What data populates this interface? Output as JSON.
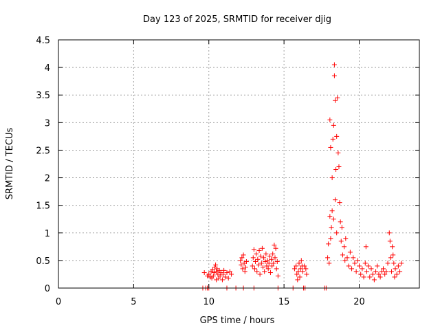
{
  "chart_data": {
    "type": "scatter",
    "title": "Day 123 of 2025, SRMTID for receiver djig",
    "xlabel": "GPS time / hours",
    "ylabel": "SRMTID / TECUs",
    "xlim": [
      0,
      24
    ],
    "ylim": [
      0,
      4.5
    ],
    "xticks": [
      0,
      5,
      10,
      15,
      20
    ],
    "xtick_labels": [
      "0",
      "5",
      "10",
      "15",
      "20"
    ],
    "yticks": [
      0,
      0.5,
      1,
      1.5,
      2,
      2.5,
      3,
      3.5,
      4,
      4.5
    ],
    "ytick_labels": [
      "0",
      "0.5",
      "1",
      "1.5",
      "2",
      "2.5",
      "3",
      "3.5",
      "4",
      "4.5"
    ],
    "grid": true,
    "marker": "+",
    "color": "#ff0000",
    "series": [
      {
        "name": "SRMTID",
        "points": [
          [
            9.6,
            0
          ],
          [
            9.8,
            0
          ],
          [
            9.9,
            0
          ],
          [
            10.0,
            0
          ],
          [
            11.2,
            0
          ],
          [
            11.8,
            0
          ],
          [
            12.3,
            0
          ],
          [
            13.0,
            0
          ],
          [
            14.6,
            0
          ],
          [
            15.6,
            0
          ],
          [
            16.3,
            0
          ],
          [
            16.4,
            0
          ],
          [
            17.7,
            0
          ],
          [
            17.8,
            0
          ],
          [
            9.7,
            0.28
          ],
          [
            9.9,
            0.22
          ],
          [
            10.0,
            0.25
          ],
          [
            10.1,
            0.2
          ],
          [
            10.15,
            0.3
          ],
          [
            10.2,
            0.18
          ],
          [
            10.25,
            0.33
          ],
          [
            10.3,
            0.22
          ],
          [
            10.35,
            0.28
          ],
          [
            10.4,
            0.38
          ],
          [
            10.45,
            0.42
          ],
          [
            10.5,
            0.3
          ],
          [
            10.5,
            0.15
          ],
          [
            10.55,
            0.35
          ],
          [
            10.6,
            0.25
          ],
          [
            10.65,
            0.18
          ],
          [
            10.7,
            0.32
          ],
          [
            10.75,
            0.22
          ],
          [
            10.8,
            0.28
          ],
          [
            10.9,
            0.15
          ],
          [
            10.95,
            0.25
          ],
          [
            11.0,
            0.32
          ],
          [
            11.1,
            0.2
          ],
          [
            11.2,
            0.28
          ],
          [
            11.3,
            0.18
          ],
          [
            11.4,
            0.3
          ],
          [
            11.5,
            0.25
          ],
          [
            12.1,
            0.5
          ],
          [
            12.15,
            0.42
          ],
          [
            12.2,
            0.55
          ],
          [
            12.25,
            0.35
          ],
          [
            12.3,
            0.6
          ],
          [
            12.35,
            0.45
          ],
          [
            12.4,
            0.3
          ],
          [
            12.45,
            0.38
          ],
          [
            12.5,
            0.48
          ],
          [
            12.9,
            0.4
          ],
          [
            12.95,
            0.55
          ],
          [
            13.0,
            0.7
          ],
          [
            13.05,
            0.35
          ],
          [
            13.1,
            0.48
          ],
          [
            13.15,
            0.62
          ],
          [
            13.2,
            0.3
          ],
          [
            13.25,
            0.52
          ],
          [
            13.3,
            0.42
          ],
          [
            13.35,
            0.68
          ],
          [
            13.4,
            0.25
          ],
          [
            13.45,
            0.58
          ],
          [
            13.5,
            0.45
          ],
          [
            13.55,
            0.72
          ],
          [
            13.6,
            0.38
          ],
          [
            13.65,
            0.55
          ],
          [
            13.7,
            0.3
          ],
          [
            13.75,
            0.48
          ],
          [
            13.8,
            0.62
          ],
          [
            13.85,
            0.4
          ],
          [
            13.9,
            0.5
          ],
          [
            13.95,
            0.35
          ],
          [
            14.0,
            0.45
          ],
          [
            14.05,
            0.58
          ],
          [
            14.1,
            0.28
          ],
          [
            14.15,
            0.52
          ],
          [
            14.2,
            0.4
          ],
          [
            14.25,
            0.62
          ],
          [
            14.3,
            0.45
          ],
          [
            14.35,
            0.78
          ],
          [
            14.4,
            0.55
          ],
          [
            14.45,
            0.72
          ],
          [
            14.5,
            0.35
          ],
          [
            14.55,
            0.48
          ],
          [
            14.6,
            0.22
          ],
          [
            15.7,
            0.35
          ],
          [
            15.8,
            0.4
          ],
          [
            15.85,
            0.25
          ],
          [
            15.9,
            0.15
          ],
          [
            15.95,
            0.3
          ],
          [
            16.0,
            0.45
          ],
          [
            16.05,
            0.2
          ],
          [
            16.1,
            0.35
          ],
          [
            16.15,
            0.5
          ],
          [
            16.2,
            0.4
          ],
          [
            16.25,
            0.3
          ],
          [
            16.35,
            0.4
          ],
          [
            16.45,
            0.35
          ],
          [
            16.5,
            0.25
          ],
          [
            17.9,
            0.55
          ],
          [
            17.95,
            0.8
          ],
          [
            18.0,
            0.45
          ],
          [
            18.05,
            1.3
          ],
          [
            18.05,
            3.05
          ],
          [
            18.1,
            0.9
          ],
          [
            18.1,
            2.55
          ],
          [
            18.15,
            1.1
          ],
          [
            18.2,
            2.0
          ],
          [
            18.2,
            1.4
          ],
          [
            18.25,
            2.7
          ],
          [
            18.3,
            1.25
          ],
          [
            18.3,
            2.95
          ],
          [
            18.35,
            4.05
          ],
          [
            18.35,
            3.85
          ],
          [
            18.4,
            1.6
          ],
          [
            18.4,
            3.4
          ],
          [
            18.45,
            2.15
          ],
          [
            18.5,
            2.75
          ],
          [
            18.5,
            1.0
          ],
          [
            18.55,
            3.45
          ],
          [
            18.6,
            2.45
          ],
          [
            18.65,
            2.2
          ],
          [
            18.7,
            1.55
          ],
          [
            18.75,
            1.2
          ],
          [
            18.8,
            0.85
          ],
          [
            18.85,
            1.1
          ],
          [
            18.9,
            0.6
          ],
          [
            19.0,
            0.75
          ],
          [
            19.05,
            0.5
          ],
          [
            19.1,
            0.9
          ],
          [
            19.2,
            0.55
          ],
          [
            19.3,
            0.4
          ],
          [
            19.4,
            0.65
          ],
          [
            19.5,
            0.35
          ],
          [
            19.6,
            0.55
          ],
          [
            19.7,
            0.45
          ],
          [
            19.8,
            0.3
          ],
          [
            19.9,
            0.5
          ],
          [
            20.0,
            0.4
          ],
          [
            20.1,
            0.25
          ],
          [
            20.2,
            0.35
          ],
          [
            20.3,
            0.2
          ],
          [
            20.4,
            0.45
          ],
          [
            20.45,
            0.75
          ],
          [
            20.5,
            0.3
          ],
          [
            20.6,
            0.4
          ],
          [
            20.7,
            0.2
          ],
          [
            20.8,
            0.35
          ],
          [
            20.9,
            0.25
          ],
          [
            21.0,
            0.15
          ],
          [
            21.1,
            0.3
          ],
          [
            21.2,
            0.4
          ],
          [
            21.3,
            0.25
          ],
          [
            21.4,
            0.2
          ],
          [
            21.5,
            0.3
          ],
          [
            21.6,
            0.35
          ],
          [
            21.7,
            0.25
          ],
          [
            21.8,
            0.3
          ],
          [
            21.9,
            0.45
          ],
          [
            22.0,
            1.0
          ],
          [
            22.05,
            0.85
          ],
          [
            22.1,
            0.55
          ],
          [
            22.15,
            0.3
          ],
          [
            22.2,
            0.75
          ],
          [
            22.25,
            0.6
          ],
          [
            22.3,
            0.45
          ],
          [
            22.35,
            0.2
          ],
          [
            22.4,
            0.35
          ],
          [
            22.5,
            0.25
          ],
          [
            22.6,
            0.4
          ],
          [
            22.7,
            0.3
          ],
          [
            22.8,
            0.45
          ]
        ]
      }
    ]
  }
}
